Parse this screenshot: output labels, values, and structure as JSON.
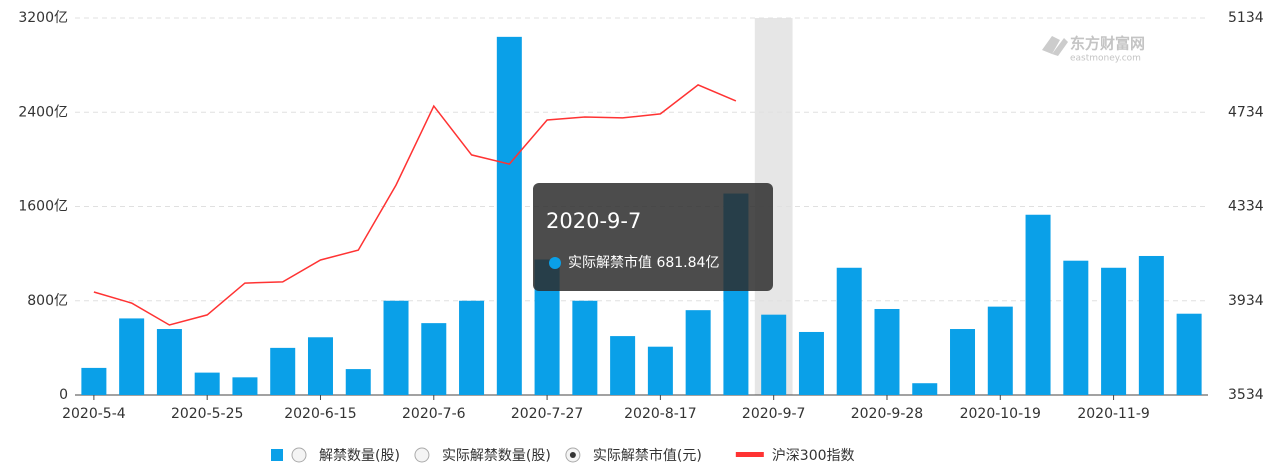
{
  "chart_data": {
    "type": "bar",
    "categories": [
      "2020-5-4",
      null,
      null,
      "2020-5-25",
      null,
      null,
      "2020-6-15",
      null,
      null,
      "2020-7-6",
      null,
      null,
      "2020-7-27",
      null,
      null,
      "2020-8-17",
      null,
      null,
      "2020-9-7",
      null,
      null,
      "2020-9-28",
      null,
      null,
      "2020-10-19",
      null,
      null,
      "2020-11-9",
      null,
      null
    ],
    "series": [
      {
        "name": "实际解禁市值(元)",
        "color": "#0aa0e8",
        "values": [
          230,
          650,
          560,
          190,
          150,
          400,
          490,
          220,
          800,
          610,
          800,
          3040,
          1150,
          800,
          500,
          410,
          720,
          1710,
          681.84,
          535,
          1080,
          730,
          100,
          560,
          750,
          1530,
          1140,
          1080,
          1180,
          690
        ],
        "value_labels": [
          null,
          null,
          null,
          null,
          null,
          null,
          null,
          null,
          null,
          null,
          null,
          null,
          null,
          null,
          null,
          null,
          null,
          null,
          "681.84亿",
          null,
          null,
          null,
          null,
          null,
          null,
          null,
          null,
          null,
          null,
          null
        ]
      },
      {
        "name": "沪深300指数",
        "color": "#ff3333",
        "axis": "y2",
        "type": "line",
        "values": [
          3971,
          3924,
          3831,
          3874,
          4009,
          4014,
          4107,
          4149,
          4425,
          4760,
          4553,
          4514,
          4701,
          4714,
          4710,
          4727,
          4850,
          4782,
          null,
          null,
          null,
          null,
          null,
          null,
          null,
          null,
          null,
          null,
          null,
          null
        ]
      }
    ],
    "measure_options": [
      "解禁数量(股)",
      "实际解禁数量(股)"
    ],
    "tooltip_label": "实际解禁市值",
    "highlight_index": 18,
    "ylim": [
      0,
      3200
    ],
    "yticks": [
      0,
      {
        "value": 800,
        "label": "800亿"
      },
      {
        "value": 1600,
        "label": "1600亿"
      },
      {
        "value": 2400,
        "label": "2400亿"
      },
      {
        "value": 3200,
        "label": "3200亿"
      }
    ],
    "y2lim": [
      3534,
      5134
    ],
    "y2ticks": [
      3534,
      3934,
      4334,
      4734,
      5134
    ],
    "grid": true,
    "watermark": [
      "东方财富网",
      "eastmoney.com"
    ]
  }
}
